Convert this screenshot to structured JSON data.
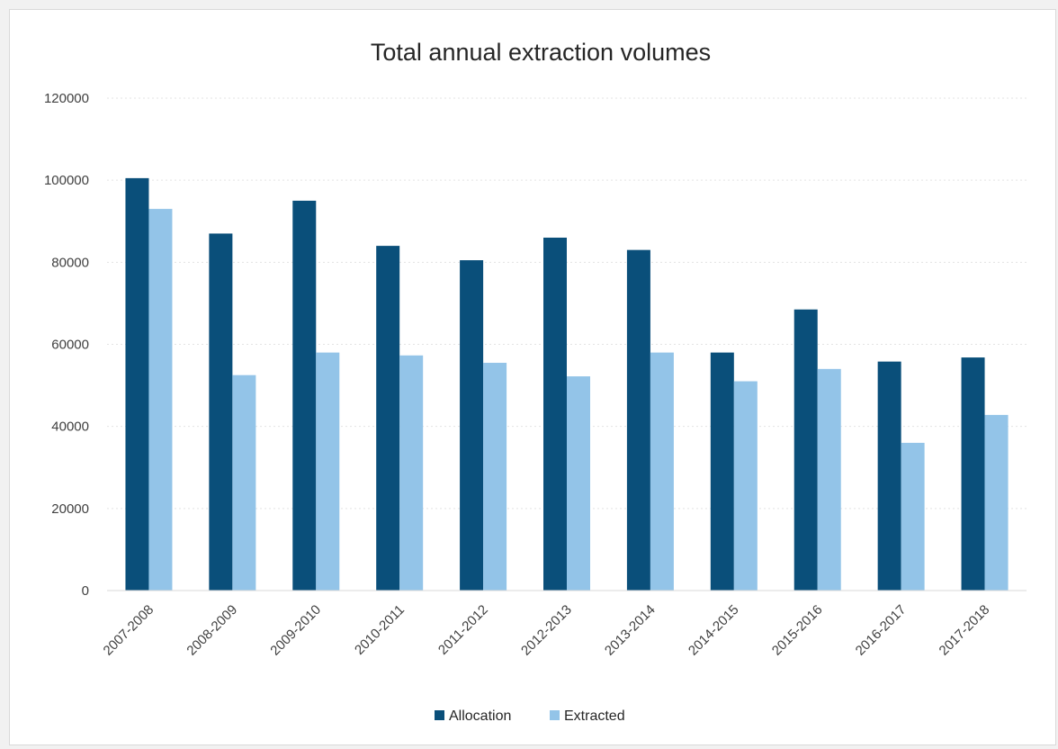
{
  "chart_data": {
    "type": "bar",
    "title": "Total annual extraction volumes",
    "xlabel": "",
    "ylabel": "",
    "categories": [
      "2007-2008",
      "2008-2009",
      "2009-2010",
      "2010-2011",
      "2011-2012",
      "2012-2013",
      "2013-2014",
      "2014-2015",
      "2015-2016",
      "2016-2017",
      "2017-2018"
    ],
    "series": [
      {
        "name": "Allocation",
        "color": "#0a4f7a",
        "values": [
          100500,
          87000,
          95000,
          84000,
          80500,
          86000,
          83000,
          58000,
          68500,
          55800,
          56800
        ]
      },
      {
        "name": "Extracted",
        "color": "#93c4e8",
        "values": [
          93000,
          52500,
          58000,
          57300,
          55500,
          52200,
          58000,
          51000,
          54000,
          36000,
          42800
        ]
      }
    ],
    "ylim": [
      0,
      120000
    ],
    "yticks": [
      0,
      20000,
      40000,
      60000,
      80000,
      100000,
      120000
    ],
    "grid": true,
    "legend": "bottom-center"
  }
}
